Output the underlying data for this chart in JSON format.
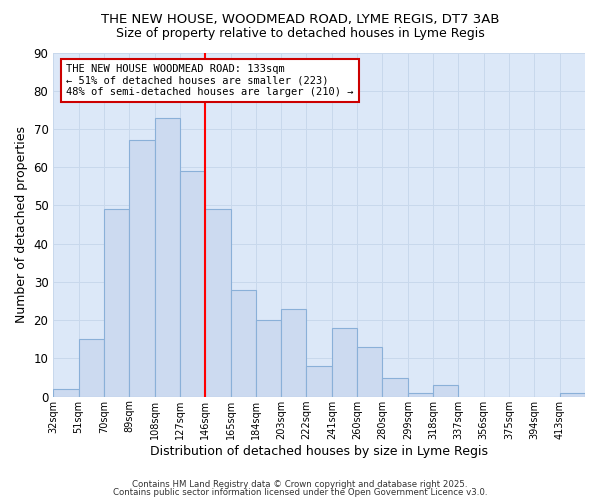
{
  "title1": "THE NEW HOUSE, WOODMEAD ROAD, LYME REGIS, DT7 3AB",
  "title2": "Size of property relative to detached houses in Lyme Regis",
  "xlabel": "Distribution of detached houses by size in Lyme Regis",
  "ylabel": "Number of detached properties",
  "categories": [
    "32sqm",
    "51sqm",
    "70sqm",
    "89sqm",
    "108sqm",
    "127sqm",
    "146sqm",
    "165sqm",
    "184sqm",
    "203sqm",
    "222sqm",
    "241sqm",
    "260sqm",
    "280sqm",
    "299sqm",
    "318sqm",
    "337sqm",
    "356sqm",
    "375sqm",
    "394sqm",
    "413sqm"
  ],
  "values": [
    2,
    15,
    49,
    67,
    73,
    59,
    49,
    28,
    20,
    23,
    8,
    18,
    13,
    5,
    1,
    3,
    0,
    0,
    0,
    0,
    1
  ],
  "bar_color": "#ccdaf0",
  "bar_edge_color": "#8ab0d8",
  "red_line_index": 6,
  "red_line_label": "THE NEW HOUSE WOODMEAD ROAD: 133sqm",
  "annotation_line2": "← 51% of detached houses are smaller (223)",
  "annotation_line3": "48% of semi-detached houses are larger (210) →",
  "annotation_box_color": "#ffffff",
  "annotation_border_color": "#cc0000",
  "ylim": [
    0,
    90
  ],
  "yticks": [
    0,
    10,
    20,
    30,
    40,
    50,
    60,
    70,
    80,
    90
  ],
  "grid_color": "#c8d8ec",
  "footer1": "Contains HM Land Registry data © Crown copyright and database right 2025.",
  "footer2": "Contains public sector information licensed under the Open Government Licence v3.0.",
  "background_color": "#ffffff",
  "plot_background_color": "#dce8f8"
}
